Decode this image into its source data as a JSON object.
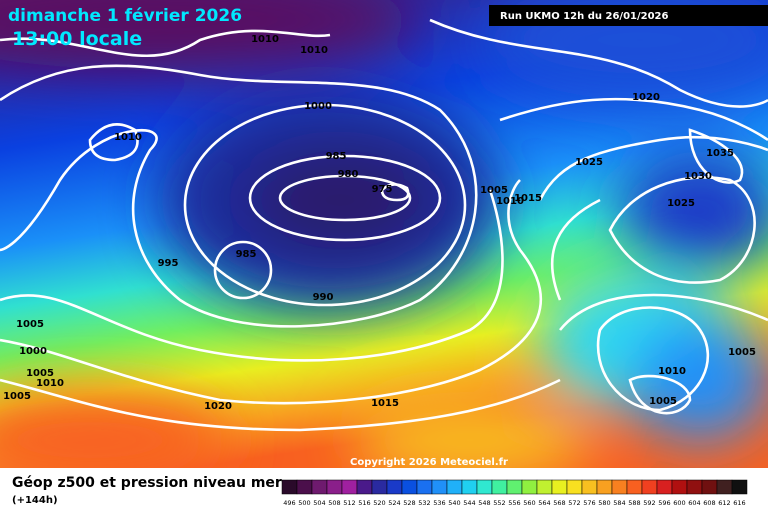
{
  "header": {
    "date": "dimanche 1 février 2026",
    "time": "13:00 locale",
    "run": "Run UKMO 12h du 26/01/2026"
  },
  "isobar_labels": [
    "1010",
    "1010",
    "1000",
    "1010",
    "985",
    "980",
    "975",
    "1005",
    "1010",
    "1015",
    "1020",
    "1025",
    "1035",
    "1030",
    "1025",
    "995",
    "985",
    "990",
    "1005",
    "1000",
    "1005",
    "1010",
    "1005",
    "1020",
    "1015",
    "1010",
    "1005",
    "1005"
  ],
  "copyright": "Copyright 2026 Meteociel.fr",
  "footer": {
    "title": "Géop z500 et pression niveau mer",
    "lead": "(+144h)"
  },
  "legend": {
    "labels": [
      "496",
      "500",
      "504",
      "508",
      "512",
      "516",
      "520",
      "524",
      "528",
      "532",
      "536",
      "540",
      "544",
      "548",
      "552",
      "556",
      "560",
      "564",
      "568",
      "572",
      "576",
      "580",
      "584",
      "588",
      "592",
      "596",
      "600",
      "604",
      "608",
      "612",
      "616"
    ],
    "colors": [
      "#2a0a2a",
      "#4b0f4b",
      "#6e1a6e",
      "#8a1f8a",
      "#a020a0",
      "#4a1a8a",
      "#2a2aa0",
      "#1a3ac8",
      "#0a50e0",
      "#1a70f0",
      "#2090f8",
      "#20b0f8",
      "#20d0f0",
      "#30e8d0",
      "#40f0a0",
      "#60f070",
      "#90f040",
      "#c0f030",
      "#e8f020",
      "#f8e020",
      "#f8c020",
      "#f8a020",
      "#f88020",
      "#f86020",
      "#f04020",
      "#d82020",
      "#b01010",
      "#901010",
      "#701010",
      "#402020",
      "#101010"
    ]
  }
}
